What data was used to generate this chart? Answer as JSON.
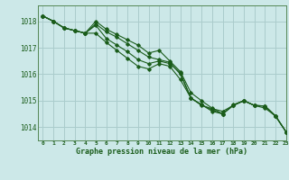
{
  "background_color": "#cce8e8",
  "grid_color": "#aacccc",
  "line_color": "#1a5c1a",
  "title": "Graphe pression niveau de la mer (hPa)",
  "xlim": [
    -0.5,
    23
  ],
  "ylim": [
    1013.5,
    1018.6
  ],
  "yticks": [
    1014,
    1015,
    1016,
    1017,
    1018
  ],
  "xticks": [
    0,
    1,
    2,
    3,
    4,
    5,
    6,
    7,
    8,
    9,
    10,
    11,
    12,
    13,
    14,
    15,
    16,
    17,
    18,
    19,
    20,
    21,
    22,
    23
  ],
  "series": [
    [
      1018.2,
      1018.0,
      1017.75,
      1017.65,
      1017.55,
      1017.85,
      1017.35,
      1017.1,
      1016.85,
      1016.55,
      1016.4,
      1016.5,
      1016.4,
      1016.05,
      1015.1,
      1014.85,
      1014.6,
      1014.5,
      1014.82,
      1015.0,
      1014.82,
      1014.8,
      1014.42,
      1013.82
    ],
    [
      1018.2,
      1018.0,
      1017.75,
      1017.65,
      1017.55,
      1017.55,
      1017.2,
      1016.9,
      1016.6,
      1016.3,
      1016.2,
      1016.4,
      1016.3,
      1015.8,
      1015.1,
      1014.82,
      1014.7,
      1014.6,
      1014.82,
      1015.0,
      1014.82,
      1014.72,
      1014.42,
      1013.82
    ],
    [
      1018.2,
      1018.0,
      1017.75,
      1017.65,
      1017.55,
      1018.0,
      1017.7,
      1017.5,
      1017.3,
      1017.1,
      1016.8,
      1016.9,
      1016.5,
      1016.1,
      1015.3,
      1015.0,
      1014.72,
      1014.5,
      1014.82,
      1015.0,
      1014.82,
      1014.8,
      1014.42,
      1013.82
    ],
    [
      1018.2,
      1018.0,
      1017.75,
      1017.65,
      1017.55,
      1017.9,
      1017.6,
      1017.4,
      1017.15,
      1016.9,
      1016.65,
      1016.55,
      1016.45,
      1016.0,
      1015.1,
      1014.85,
      1014.65,
      1014.5,
      1014.85,
      1015.0,
      1014.82,
      1014.8,
      1014.42,
      1013.82
    ]
  ]
}
